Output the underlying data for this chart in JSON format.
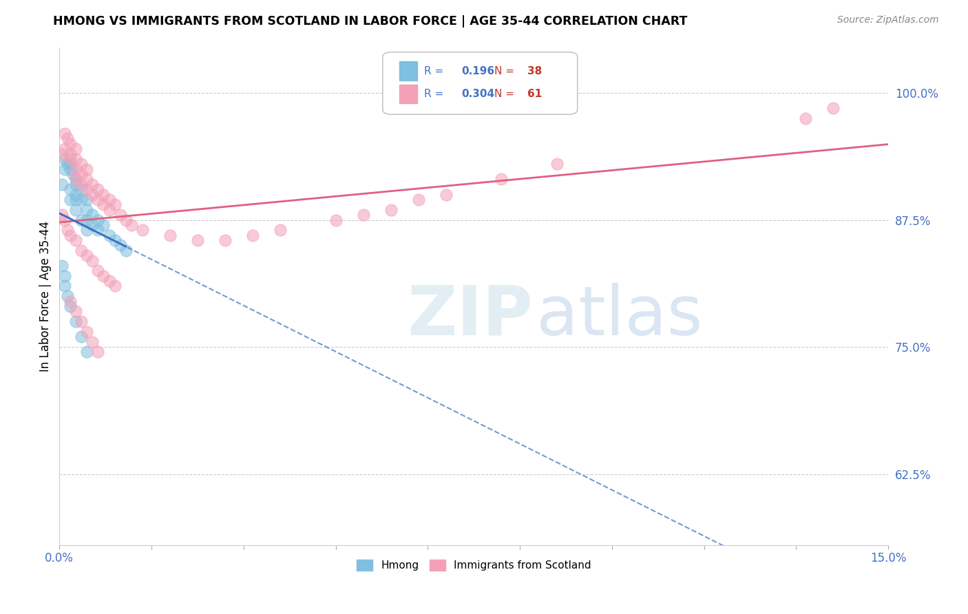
{
  "title": "HMONG VS IMMIGRANTS FROM SCOTLAND IN LABOR FORCE | AGE 35-44 CORRELATION CHART",
  "source": "Source: ZipAtlas.com",
  "ylabel": "In Labor Force | Age 35-44",
  "xmin": 0.0,
  "xmax": 0.15,
  "ymin": 0.555,
  "ymax": 1.045,
  "yticks": [
    0.625,
    0.75,
    0.875,
    1.0
  ],
  "ytick_labels": [
    "62.5%",
    "75.0%",
    "87.5%",
    "100.0%"
  ],
  "watermark_zip": "ZIP",
  "watermark_atlas": "atlas",
  "hmong_color": "#7fbfdf",
  "scot_color": "#f4a0b8",
  "hmong_line_color": "#3a6fbf",
  "scot_line_color": "#e06080",
  "r_color": "#4472c4",
  "n_color": "#c0392b",
  "hmong_x": [
    0.0005,
    0.001,
    0.001,
    0.0015,
    0.002,
    0.002,
    0.002,
    0.002,
    0.0025,
    0.003,
    0.003,
    0.003,
    0.003,
    0.003,
    0.004,
    0.004,
    0.004,
    0.005,
    0.005,
    0.005,
    0.005,
    0.006,
    0.006,
    0.007,
    0.007,
    0.008,
    0.009,
    0.01,
    0.011,
    0.012,
    0.0005,
    0.001,
    0.001,
    0.0015,
    0.002,
    0.003,
    0.004,
    0.005
  ],
  "hmong_y": [
    0.91,
    0.935,
    0.925,
    0.93,
    0.93,
    0.925,
    0.905,
    0.895,
    0.92,
    0.915,
    0.91,
    0.9,
    0.895,
    0.885,
    0.905,
    0.895,
    0.875,
    0.895,
    0.885,
    0.875,
    0.865,
    0.88,
    0.87,
    0.875,
    0.865,
    0.87,
    0.86,
    0.855,
    0.85,
    0.845,
    0.83,
    0.82,
    0.81,
    0.8,
    0.79,
    0.775,
    0.76,
    0.745
  ],
  "scot_x": [
    0.0005,
    0.001,
    0.001,
    0.0015,
    0.002,
    0.002,
    0.002,
    0.003,
    0.003,
    0.003,
    0.003,
    0.004,
    0.004,
    0.004,
    0.005,
    0.005,
    0.005,
    0.006,
    0.006,
    0.007,
    0.007,
    0.008,
    0.008,
    0.009,
    0.009,
    0.01,
    0.011,
    0.012,
    0.013,
    0.015,
    0.02,
    0.025,
    0.03,
    0.0005,
    0.001,
    0.0015,
    0.002,
    0.003,
    0.004,
    0.005,
    0.006,
    0.007,
    0.008,
    0.009,
    0.01,
    0.002,
    0.003,
    0.004,
    0.005,
    0.006,
    0.007,
    0.035,
    0.04,
    0.05,
    0.055,
    0.06,
    0.065,
    0.07,
    0.08,
    0.09,
    0.135,
    0.14
  ],
  "scot_y": [
    0.94,
    0.96,
    0.945,
    0.955,
    0.95,
    0.94,
    0.935,
    0.945,
    0.935,
    0.925,
    0.915,
    0.93,
    0.92,
    0.91,
    0.925,
    0.915,
    0.905,
    0.91,
    0.9,
    0.905,
    0.895,
    0.9,
    0.89,
    0.895,
    0.885,
    0.89,
    0.88,
    0.875,
    0.87,
    0.865,
    0.86,
    0.855,
    0.855,
    0.88,
    0.875,
    0.865,
    0.86,
    0.855,
    0.845,
    0.84,
    0.835,
    0.825,
    0.82,
    0.815,
    0.81,
    0.795,
    0.785,
    0.775,
    0.765,
    0.755,
    0.745,
    0.86,
    0.865,
    0.875,
    0.88,
    0.885,
    0.895,
    0.9,
    0.915,
    0.93,
    0.975,
    0.985
  ]
}
